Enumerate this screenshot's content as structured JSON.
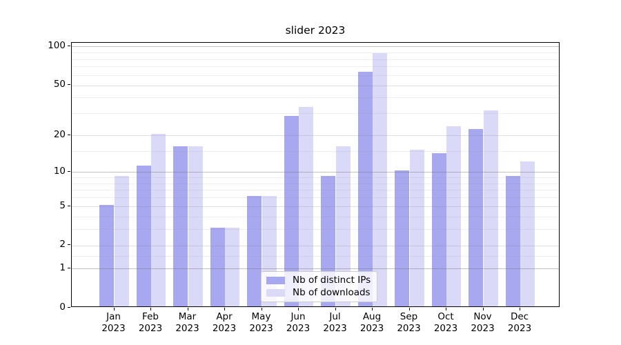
{
  "chart_data": {
    "type": "bar",
    "title": "slider 2023",
    "categories": [
      "Jan",
      "Feb",
      "Mar",
      "Apr",
      "May",
      "Jun",
      "Jul",
      "Aug",
      "Sep",
      "Oct",
      "Nov",
      "Dec"
    ],
    "xtick_year": "2023",
    "series": [
      {
        "name": "Nb of distinct IPs",
        "color": "#a8a8f0",
        "values": [
          5,
          11,
          16,
          3,
          6,
          28,
          9,
          62,
          10,
          14,
          22,
          9
        ]
      },
      {
        "name": "Nb of downloads",
        "color": "#dadaf8",
        "values": [
          9,
          20,
          16,
          3,
          6,
          33,
          16,
          87,
          15,
          23,
          31,
          12
        ]
      }
    ],
    "yscale": "log1p",
    "ylim": [
      0,
      107
    ],
    "ytick_values": [
      0,
      1,
      2,
      5,
      10,
      20,
      50,
      100
    ],
    "ytick_labels": [
      "0",
      "1",
      "2",
      "5",
      "10",
      "20",
      "50",
      "100"
    ],
    "decade_gridlines": [
      1,
      10,
      100
    ],
    "minor_gridlines": [
      1.5,
      3,
      4,
      6,
      7,
      8,
      9,
      15,
      30,
      40,
      60,
      70,
      80,
      90
    ],
    "grid": true,
    "legend_position": "lower center"
  },
  "colors": {
    "background": "#ffffff",
    "spine": "#000000",
    "text": "#000000"
  }
}
